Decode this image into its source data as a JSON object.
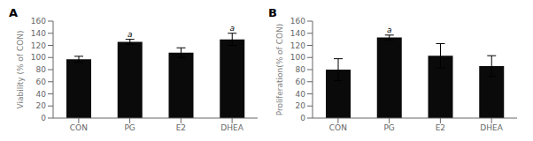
{
  "chart_data": [
    {
      "type": "bar",
      "title": "A",
      "categories": [
        "CON",
        "PG",
        "E2",
        "DHEA"
      ],
      "values": [
        97,
        126,
        108,
        130
      ],
      "errors": [
        5,
        4,
        8,
        10
      ],
      "annotations": [
        {
          "category": "PG",
          "text": "a"
        },
        {
          "category": "DHEA",
          "text": "a"
        }
      ],
      "ylabel": "Viability (% of CON)",
      "ylim": [
        0,
        160
      ],
      "yticks": [
        0,
        20,
        40,
        60,
        80,
        100,
        120,
        140,
        160
      ],
      "color": "#0a0a0a"
    },
    {
      "type": "bar",
      "title": "B",
      "categories": [
        "CON",
        "PG",
        "E2",
        "DHEA"
      ],
      "values": [
        80,
        133,
        103,
        86
      ],
      "errors": [
        18,
        4,
        20,
        17
      ],
      "annotations": [
        {
          "category": "PG",
          "text": "a"
        }
      ],
      "ylabel": "Proliferation(% of CON)",
      "ylim": [
        0,
        160
      ],
      "yticks": [
        0,
        20,
        40,
        60,
        80,
        100,
        120,
        140,
        160
      ],
      "color": "#0a0a0a"
    }
  ]
}
